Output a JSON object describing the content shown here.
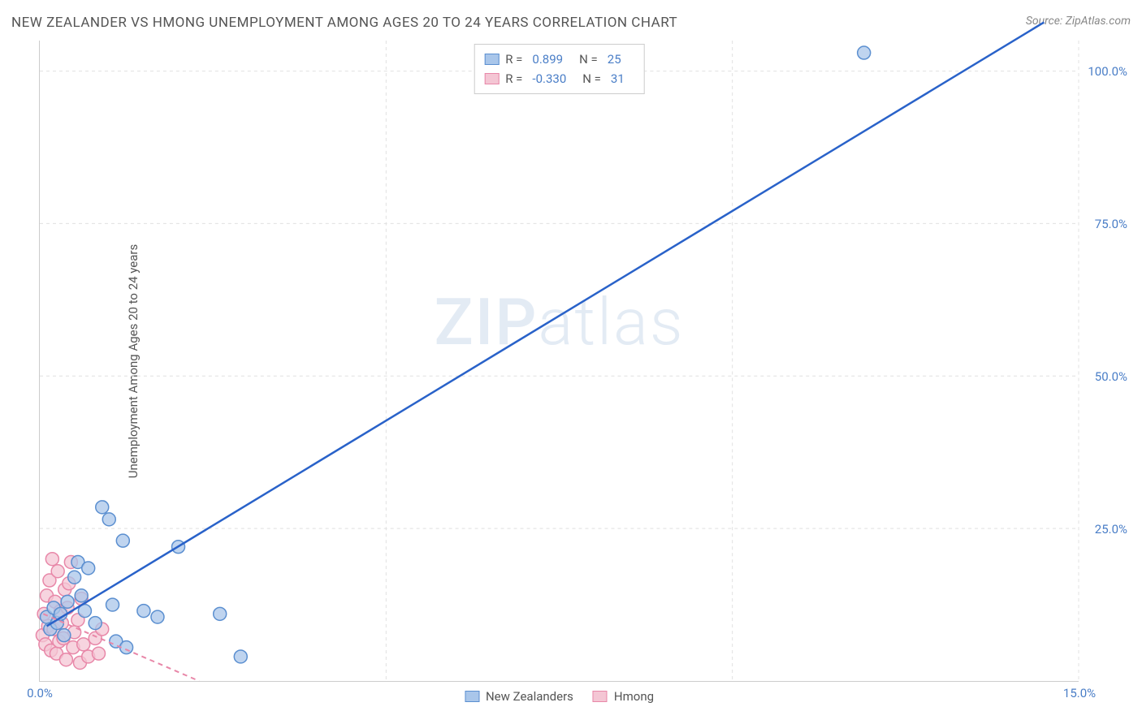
{
  "title": "NEW ZEALANDER VS HMONG UNEMPLOYMENT AMONG AGES 20 TO 24 YEARS CORRELATION CHART",
  "source": "Source: ZipAtlas.com",
  "y_axis_label": "Unemployment Among Ages 20 to 24 years",
  "watermark_a": "ZIP",
  "watermark_b": "atlas",
  "chart": {
    "type": "scatter-correlation",
    "xlim": [
      0,
      15
    ],
    "ylim": [
      0,
      105
    ],
    "x_ticks": [
      0,
      15
    ],
    "x_tick_labels": [
      "0.0%",
      "15.0%"
    ],
    "y_ticks": [
      25,
      50,
      75,
      100
    ],
    "y_tick_labels": [
      "25.0%",
      "50.0%",
      "75.0%",
      "100.0%"
    ],
    "x_grid_at": [
      5,
      10,
      15
    ],
    "background_color": "#ffffff",
    "grid_color": "#e0e0e0",
    "axis_color": "#cccccc",
    "tick_label_color": "#4a7ec7",
    "series": [
      {
        "name": "New Zealanders",
        "color_fill": "#a9c6ea",
        "color_stroke": "#5b8fd0",
        "marker_radius": 8,
        "trend": {
          "x1": 0.1,
          "y1": 9,
          "x2": 14.5,
          "y2": 108,
          "stroke": "#2962c9",
          "width": 2.5,
          "dash": "none"
        },
        "R_label": "R =",
        "R_value": "0.899",
        "N_label": "N =",
        "N_value": "25",
        "points": [
          [
            0.1,
            10.5
          ],
          [
            0.15,
            8.5
          ],
          [
            0.2,
            12
          ],
          [
            0.25,
            9.5
          ],
          [
            0.3,
            11
          ],
          [
            0.35,
            7.5
          ],
          [
            0.4,
            13
          ],
          [
            0.5,
            17
          ],
          [
            0.55,
            19.5
          ],
          [
            0.6,
            14
          ],
          [
            0.65,
            11.5
          ],
          [
            0.7,
            18.5
          ],
          [
            0.8,
            9.5
          ],
          [
            0.9,
            28.5
          ],
          [
            1.0,
            26.5
          ],
          [
            1.05,
            12.5
          ],
          [
            1.1,
            6.5
          ],
          [
            1.2,
            23
          ],
          [
            1.25,
            5.5
          ],
          [
            1.5,
            11.5
          ],
          [
            1.7,
            10.5
          ],
          [
            2.0,
            22
          ],
          [
            2.6,
            11
          ],
          [
            2.9,
            4
          ],
          [
            11.9,
            103
          ]
        ]
      },
      {
        "name": "Hmong",
        "color_fill": "#f4c6d4",
        "color_stroke": "#e887a8",
        "marker_radius": 8,
        "trend": {
          "x1": 0.05,
          "y1": 11,
          "x2": 2.3,
          "y2": 0,
          "stroke": "#e887a8",
          "width": 2,
          "dash": "6,5"
        },
        "R_label": "R =",
        "R_value": "-0.330",
        "N_label": "N =",
        "N_value": "31",
        "points": [
          [
            0.04,
            7.5
          ],
          [
            0.06,
            11
          ],
          [
            0.08,
            6
          ],
          [
            0.1,
            14
          ],
          [
            0.12,
            9
          ],
          [
            0.14,
            16.5
          ],
          [
            0.16,
            5
          ],
          [
            0.18,
            20
          ],
          [
            0.2,
            8.5
          ],
          [
            0.22,
            13
          ],
          [
            0.24,
            4.5
          ],
          [
            0.26,
            18
          ],
          [
            0.28,
            6.5
          ],
          [
            0.3,
            11.5
          ],
          [
            0.32,
            9.5
          ],
          [
            0.34,
            7
          ],
          [
            0.36,
            15
          ],
          [
            0.38,
            3.5
          ],
          [
            0.4,
            12
          ],
          [
            0.42,
            16
          ],
          [
            0.45,
            19.5
          ],
          [
            0.48,
            5.5
          ],
          [
            0.5,
            8
          ],
          [
            0.55,
            10
          ],
          [
            0.58,
            3
          ],
          [
            0.6,
            13.5
          ],
          [
            0.63,
            6
          ],
          [
            0.7,
            4
          ],
          [
            0.8,
            7
          ],
          [
            0.85,
            4.5
          ],
          [
            0.9,
            8.5
          ]
        ]
      }
    ]
  }
}
